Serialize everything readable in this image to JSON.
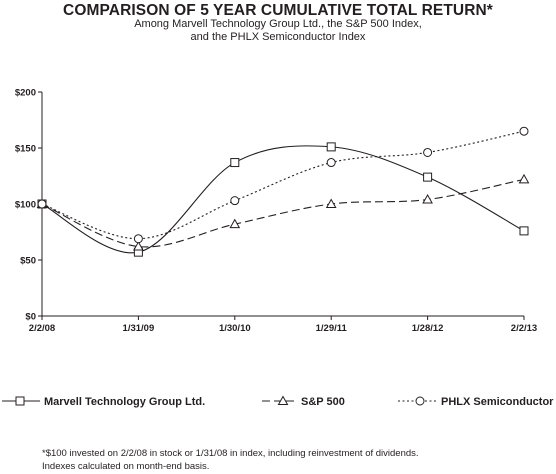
{
  "header": {
    "title": "COMPARISON OF 5 YEAR CUMULATIVE TOTAL RETURN*",
    "subtitle_line1": "Among Marvell Technology Group Ltd., the S&P 500 Index,",
    "subtitle_line2": "and the PHLX Semiconductor Index"
  },
  "chart_data": {
    "type": "line",
    "title": "COMPARISON OF 5 YEAR CUMULATIVE TOTAL RETURN*",
    "x": [
      "2/2/08",
      "1/31/09",
      "1/30/10",
      "1/29/11",
      "1/28/12",
      "2/2/13"
    ],
    "y_ticks": [
      "$0",
      "$50",
      "$100",
      "$150",
      "$200"
    ],
    "ylim": [
      0,
      200
    ],
    "grid": false,
    "legend_position": "bottom",
    "series": [
      {
        "name": "Marvell Technology Group Ltd.",
        "values": [
          100,
          57,
          137,
          151,
          124,
          76
        ],
        "marker": "square",
        "line_style": "solid",
        "color": "#231f20"
      },
      {
        "name": "S&P 500",
        "values": [
          100,
          62,
          82,
          100,
          104,
          122
        ],
        "marker": "triangle",
        "line_style": "dashed",
        "color": "#231f20"
      },
      {
        "name": "PHLX Semiconductor",
        "values": [
          100,
          69,
          103,
          137,
          146,
          165
        ],
        "marker": "circle",
        "line_style": "dotted",
        "color": "#231f20"
      }
    ]
  },
  "footnote": {
    "line1": "*$100 invested on 2/2/08 in stock or 1/31/08 in index, including reinvestment of dividends.",
    "line2": "Indexes calculated on month-end basis."
  }
}
